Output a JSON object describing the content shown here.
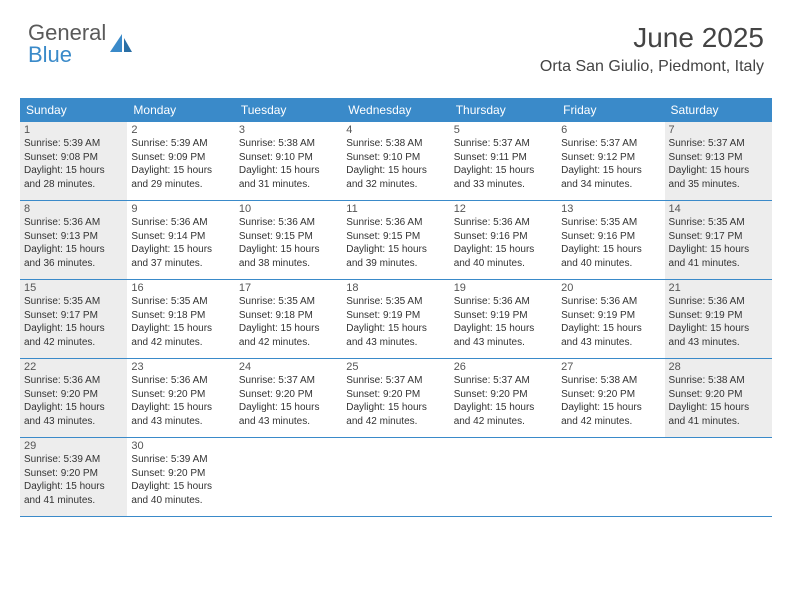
{
  "logo": {
    "line1": "General",
    "line2": "Blue"
  },
  "header": {
    "month": "June 2025",
    "location": "Orta San Giulio, Piedmont, Italy"
  },
  "colors": {
    "accent": "#3a8ac9",
    "header_text": "#ffffff",
    "body_text": "#333333",
    "gray_bg": "#ededed",
    "border": "#3a8ac9",
    "background": "#ffffff"
  },
  "styling": {
    "month_title_fontsize": 28,
    "location_fontsize": 16,
    "day_header_fontsize": 12,
    "day_num_fontsize": 11,
    "day_line_fontsize": 10,
    "logo_fontsize": 22,
    "cell_min_height": 78,
    "columns": 7
  },
  "day_names": [
    "Sunday",
    "Monday",
    "Tuesday",
    "Wednesday",
    "Thursday",
    "Friday",
    "Saturday"
  ],
  "weeks": [
    [
      {
        "num": "1",
        "gray": true,
        "sunrise": "Sunrise: 5:39 AM",
        "sunset": "Sunset: 9:08 PM",
        "d1": "Daylight: 15 hours",
        "d2": "and 28 minutes."
      },
      {
        "num": "2",
        "gray": false,
        "sunrise": "Sunrise: 5:39 AM",
        "sunset": "Sunset: 9:09 PM",
        "d1": "Daylight: 15 hours",
        "d2": "and 29 minutes."
      },
      {
        "num": "3",
        "gray": false,
        "sunrise": "Sunrise: 5:38 AM",
        "sunset": "Sunset: 9:10 PM",
        "d1": "Daylight: 15 hours",
        "d2": "and 31 minutes."
      },
      {
        "num": "4",
        "gray": false,
        "sunrise": "Sunrise: 5:38 AM",
        "sunset": "Sunset: 9:10 PM",
        "d1": "Daylight: 15 hours",
        "d2": "and 32 minutes."
      },
      {
        "num": "5",
        "gray": false,
        "sunrise": "Sunrise: 5:37 AM",
        "sunset": "Sunset: 9:11 PM",
        "d1": "Daylight: 15 hours",
        "d2": "and 33 minutes."
      },
      {
        "num": "6",
        "gray": false,
        "sunrise": "Sunrise: 5:37 AM",
        "sunset": "Sunset: 9:12 PM",
        "d1": "Daylight: 15 hours",
        "d2": "and 34 minutes."
      },
      {
        "num": "7",
        "gray": true,
        "sunrise": "Sunrise: 5:37 AM",
        "sunset": "Sunset: 9:13 PM",
        "d1": "Daylight: 15 hours",
        "d2": "and 35 minutes."
      }
    ],
    [
      {
        "num": "8",
        "gray": true,
        "sunrise": "Sunrise: 5:36 AM",
        "sunset": "Sunset: 9:13 PM",
        "d1": "Daylight: 15 hours",
        "d2": "and 36 minutes."
      },
      {
        "num": "9",
        "gray": false,
        "sunrise": "Sunrise: 5:36 AM",
        "sunset": "Sunset: 9:14 PM",
        "d1": "Daylight: 15 hours",
        "d2": "and 37 minutes."
      },
      {
        "num": "10",
        "gray": false,
        "sunrise": "Sunrise: 5:36 AM",
        "sunset": "Sunset: 9:15 PM",
        "d1": "Daylight: 15 hours",
        "d2": "and 38 minutes."
      },
      {
        "num": "11",
        "gray": false,
        "sunrise": "Sunrise: 5:36 AM",
        "sunset": "Sunset: 9:15 PM",
        "d1": "Daylight: 15 hours",
        "d2": "and 39 minutes."
      },
      {
        "num": "12",
        "gray": false,
        "sunrise": "Sunrise: 5:36 AM",
        "sunset": "Sunset: 9:16 PM",
        "d1": "Daylight: 15 hours",
        "d2": "and 40 minutes."
      },
      {
        "num": "13",
        "gray": false,
        "sunrise": "Sunrise: 5:35 AM",
        "sunset": "Sunset: 9:16 PM",
        "d1": "Daylight: 15 hours",
        "d2": "and 40 minutes."
      },
      {
        "num": "14",
        "gray": true,
        "sunrise": "Sunrise: 5:35 AM",
        "sunset": "Sunset: 9:17 PM",
        "d1": "Daylight: 15 hours",
        "d2": "and 41 minutes."
      }
    ],
    [
      {
        "num": "15",
        "gray": true,
        "sunrise": "Sunrise: 5:35 AM",
        "sunset": "Sunset: 9:17 PM",
        "d1": "Daylight: 15 hours",
        "d2": "and 42 minutes."
      },
      {
        "num": "16",
        "gray": false,
        "sunrise": "Sunrise: 5:35 AM",
        "sunset": "Sunset: 9:18 PM",
        "d1": "Daylight: 15 hours",
        "d2": "and 42 minutes."
      },
      {
        "num": "17",
        "gray": false,
        "sunrise": "Sunrise: 5:35 AM",
        "sunset": "Sunset: 9:18 PM",
        "d1": "Daylight: 15 hours",
        "d2": "and 42 minutes."
      },
      {
        "num": "18",
        "gray": false,
        "sunrise": "Sunrise: 5:35 AM",
        "sunset": "Sunset: 9:19 PM",
        "d1": "Daylight: 15 hours",
        "d2": "and 43 minutes."
      },
      {
        "num": "19",
        "gray": false,
        "sunrise": "Sunrise: 5:36 AM",
        "sunset": "Sunset: 9:19 PM",
        "d1": "Daylight: 15 hours",
        "d2": "and 43 minutes."
      },
      {
        "num": "20",
        "gray": false,
        "sunrise": "Sunrise: 5:36 AM",
        "sunset": "Sunset: 9:19 PM",
        "d1": "Daylight: 15 hours",
        "d2": "and 43 minutes."
      },
      {
        "num": "21",
        "gray": true,
        "sunrise": "Sunrise: 5:36 AM",
        "sunset": "Sunset: 9:19 PM",
        "d1": "Daylight: 15 hours",
        "d2": "and 43 minutes."
      }
    ],
    [
      {
        "num": "22",
        "gray": true,
        "sunrise": "Sunrise: 5:36 AM",
        "sunset": "Sunset: 9:20 PM",
        "d1": "Daylight: 15 hours",
        "d2": "and 43 minutes."
      },
      {
        "num": "23",
        "gray": false,
        "sunrise": "Sunrise: 5:36 AM",
        "sunset": "Sunset: 9:20 PM",
        "d1": "Daylight: 15 hours",
        "d2": "and 43 minutes."
      },
      {
        "num": "24",
        "gray": false,
        "sunrise": "Sunrise: 5:37 AM",
        "sunset": "Sunset: 9:20 PM",
        "d1": "Daylight: 15 hours",
        "d2": "and 43 minutes."
      },
      {
        "num": "25",
        "gray": false,
        "sunrise": "Sunrise: 5:37 AM",
        "sunset": "Sunset: 9:20 PM",
        "d1": "Daylight: 15 hours",
        "d2": "and 42 minutes."
      },
      {
        "num": "26",
        "gray": false,
        "sunrise": "Sunrise: 5:37 AM",
        "sunset": "Sunset: 9:20 PM",
        "d1": "Daylight: 15 hours",
        "d2": "and 42 minutes."
      },
      {
        "num": "27",
        "gray": false,
        "sunrise": "Sunrise: 5:38 AM",
        "sunset": "Sunset: 9:20 PM",
        "d1": "Daylight: 15 hours",
        "d2": "and 42 minutes."
      },
      {
        "num": "28",
        "gray": true,
        "sunrise": "Sunrise: 5:38 AM",
        "sunset": "Sunset: 9:20 PM",
        "d1": "Daylight: 15 hours",
        "d2": "and 41 minutes."
      }
    ],
    [
      {
        "num": "29",
        "gray": true,
        "sunrise": "Sunrise: 5:39 AM",
        "sunset": "Sunset: 9:20 PM",
        "d1": "Daylight: 15 hours",
        "d2": "and 41 minutes."
      },
      {
        "num": "30",
        "gray": false,
        "sunrise": "Sunrise: 5:39 AM",
        "sunset": "Sunset: 9:20 PM",
        "d1": "Daylight: 15 hours",
        "d2": "and 40 minutes."
      },
      null,
      null,
      null,
      null,
      null
    ]
  ]
}
